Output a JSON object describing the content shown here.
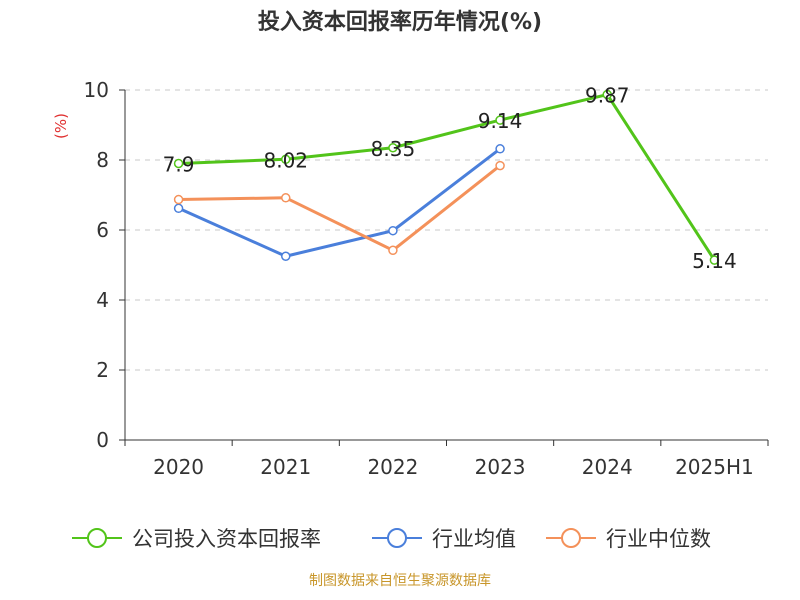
{
  "title": "投入资本回报率历年情况(%)",
  "source": "制图数据来自恒生聚源数据库",
  "chart_data": {
    "type": "line",
    "title": "投入资本回报率历年情况(%)",
    "ylabel": "(%)",
    "ylim": [
      0,
      10
    ],
    "yticks": [
      "0",
      "2",
      "4",
      "6",
      "8",
      "10"
    ],
    "categories": [
      "2020",
      "2021",
      "2022",
      "2023",
      "2024",
      "2025H1"
    ],
    "grid": "horizontal-dashed",
    "legend_position": "bottom",
    "series": [
      {
        "name": "公司投入资本回报率",
        "color": "#52c41a",
        "values": [
          7.9,
          8.02,
          8.35,
          9.14,
          9.87,
          5.14
        ],
        "labels": [
          "7.9",
          "8.02",
          "8.35",
          "9.14",
          "9.87",
          "5.14"
        ]
      },
      {
        "name": "行业均值",
        "color": "#4a7fdb",
        "values": [
          6.62,
          5.25,
          5.98,
          8.32,
          null,
          null
        ]
      },
      {
        "name": "行业中位数",
        "color": "#f4915a",
        "values": [
          6.87,
          6.92,
          5.42,
          7.84,
          null,
          null
        ]
      }
    ]
  }
}
